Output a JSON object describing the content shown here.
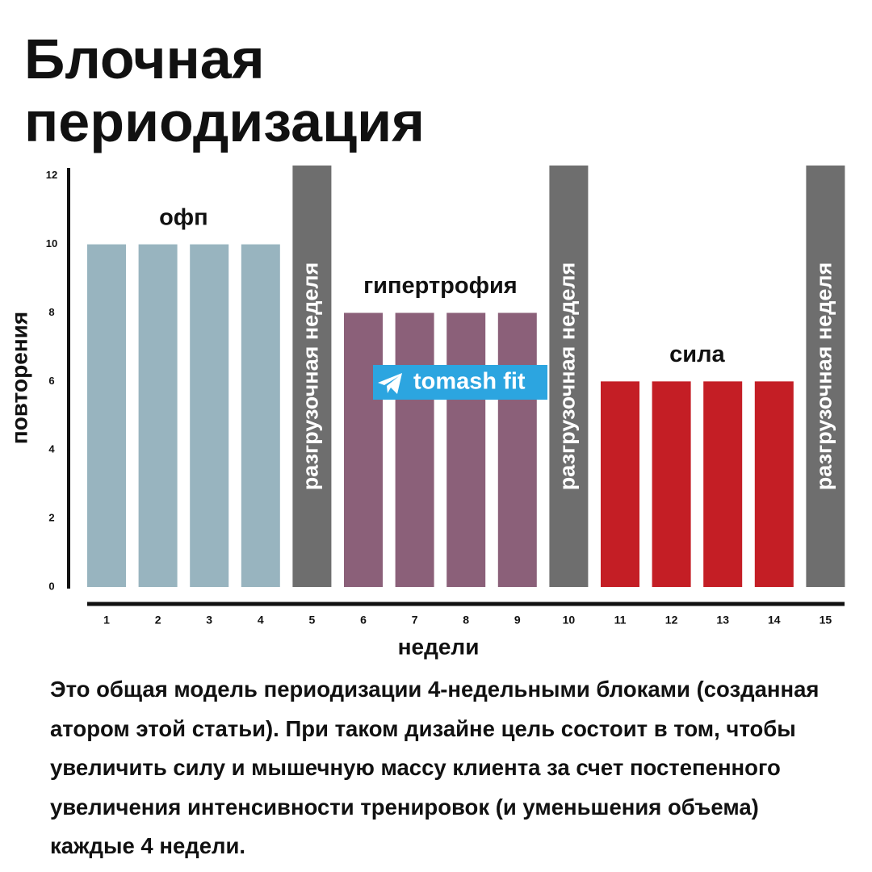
{
  "chart_data": {
    "type": "bar",
    "title": "Блочная периодизация",
    "y_label": "повторения",
    "x_label": "недели",
    "categories": [
      "1",
      "2",
      "3",
      "4",
      "5",
      "6",
      "7",
      "8",
      "9",
      "10",
      "11",
      "12",
      "13",
      "14",
      "15"
    ],
    "values": [
      10,
      10,
      10,
      10,
      12.3,
      8,
      8,
      8,
      8,
      12.3,
      6,
      6,
      6,
      6,
      12.3
    ],
    "colors": [
      "#98b4bf",
      "#98b4bf",
      "#98b4bf",
      "#98b4bf",
      "#6e6e6e",
      "#8b6079",
      "#8b6079",
      "#8b6079",
      "#8b6079",
      "#6e6e6e",
      "#c41e25",
      "#c41e25",
      "#c41e25",
      "#c41e25",
      "#6e6e6e"
    ],
    "bar_texts": [
      null,
      null,
      null,
      null,
      "разгрузочная неделя",
      null,
      null,
      null,
      null,
      "разгрузочная неделя",
      null,
      null,
      null,
      null,
      "разгрузочная неделя"
    ],
    "annotations": [
      "офп",
      "гипертрофия",
      "сила"
    ],
    "watermark": "tomash fit",
    "ylim": [
      0,
      12.3
    ],
    "yticks": [
      0,
      2,
      4,
      6,
      8,
      10,
      12
    ],
    "caption": "Это общая модель периодизации 4-недельными блоками (созданная атором этой статьи). При таком дизайне цель состоит в том, чтобы увеличить силу и мышечную массу клиента за счет постепенного увеличения интенсивности тренировок (и уменьшения объема) каждые 4 недели."
  }
}
